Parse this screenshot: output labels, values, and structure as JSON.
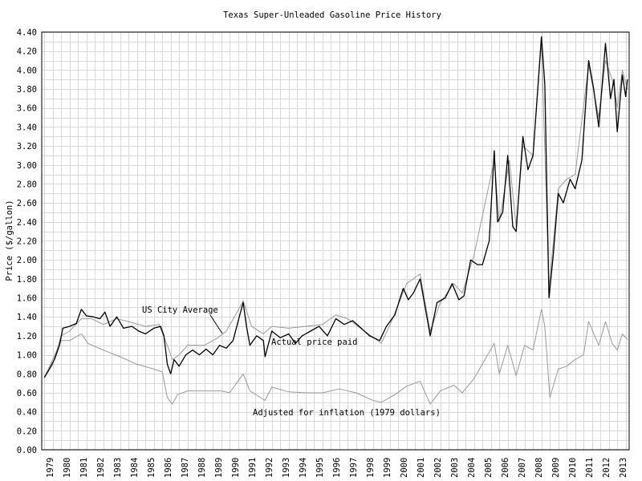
{
  "chart_data": {
    "type": "line",
    "title": "Texas Super-Unleaded Gasoline Price History",
    "ylabel": "Price ($/gallon)",
    "xlabel": "",
    "ylim": [
      0,
      4.4
    ],
    "xlim": [
      1979,
      2013.7
    ],
    "grid": true,
    "y_ticks": [
      "0.00",
      "0.20",
      "0.40",
      "0.60",
      "0.80",
      "1.00",
      "1.20",
      "1.40",
      "1.60",
      "1.80",
      "2.00",
      "2.20",
      "2.40",
      "2.60",
      "2.80",
      "3.00",
      "3.20",
      "3.40",
      "3.60",
      "3.80",
      "4.00",
      "4.20",
      "4.40"
    ],
    "x_ticks": [
      "1979",
      "1980",
      "1981",
      "1982",
      "1983",
      "1984",
      "1985",
      "1986",
      "1987",
      "1988",
      "1989",
      "1990",
      "1991",
      "1992",
      "1993",
      "1994",
      "1995",
      "1996",
      "1997",
      "1998",
      "1999",
      "2000",
      "2001",
      "2002",
      "2003",
      "2004",
      "2005",
      "2006",
      "2007",
      "2008",
      "2009",
      "2010",
      "2011",
      "2012",
      "2013"
    ],
    "colors": {
      "actual": "#000000",
      "us_city": "#999999",
      "inflation": "#999999",
      "grid": "#d8d8d8"
    },
    "series": [
      {
        "name": "Actual price paid",
        "x": [
          1979.0,
          1979.3,
          1979.6,
          1979.9,
          1980.1,
          1980.5,
          1980.9,
          1981.2,
          1981.5,
          1981.9,
          1982.3,
          1982.6,
          1982.9,
          1983.3,
          1983.7,
          1984.2,
          1984.6,
          1985.0,
          1985.5,
          1985.9,
          1986.1,
          1986.3,
          1986.5,
          1986.7,
          1987.0,
          1987.4,
          1987.8,
          1988.2,
          1988.6,
          1989.0,
          1989.4,
          1989.8,
          1990.2,
          1990.6,
          1990.8,
          1991.0,
          1991.2,
          1991.6,
          1992.0,
          1992.1,
          1992.5,
          1993.0,
          1993.5,
          1993.9,
          1994.3,
          1994.8,
          1995.3,
          1995.8,
          1996.3,
          1996.8,
          1997.3,
          1997.8,
          1998.3,
          1998.9,
          1999.3,
          1999.8,
          2000.3,
          2000.6,
          2000.9,
          2001.3,
          2001.6,
          2001.9,
          2002.3,
          2002.8,
          2003.2,
          2003.6,
          2003.9,
          2004.3,
          2004.7,
          2005.0,
          2005.4,
          2005.7,
          2005.9,
          2006.2,
          2006.5,
          2006.8,
          2007.0,
          2007.4,
          2007.7,
          2008.0,
          2008.5,
          2008.7,
          2008.95,
          2009.2,
          2009.5,
          2009.8,
          2010.2,
          2010.5,
          2010.9,
          2011.3,
          2011.6,
          2011.9,
          2012.3,
          2012.6,
          2012.8,
          2013.0,
          2013.3,
          2013.5,
          2013.6
        ],
        "y": [
          0.76,
          0.85,
          0.95,
          1.1,
          1.28,
          1.3,
          1.33,
          1.48,
          1.41,
          1.4,
          1.38,
          1.45,
          1.3,
          1.4,
          1.28,
          1.3,
          1.25,
          1.22,
          1.28,
          1.3,
          1.2,
          0.9,
          0.8,
          0.95,
          0.88,
          1.0,
          1.05,
          1.0,
          1.06,
          1.0,
          1.1,
          1.07,
          1.15,
          1.42,
          1.55,
          1.3,
          1.1,
          1.2,
          1.15,
          0.98,
          1.25,
          1.18,
          1.22,
          1.12,
          1.2,
          1.25,
          1.3,
          1.2,
          1.38,
          1.32,
          1.36,
          1.28,
          1.2,
          1.15,
          1.3,
          1.42,
          1.7,
          1.58,
          1.65,
          1.8,
          1.5,
          1.2,
          1.55,
          1.6,
          1.75,
          1.58,
          1.62,
          2.0,
          1.95,
          1.95,
          2.2,
          3.15,
          2.4,
          2.5,
          3.1,
          2.35,
          2.3,
          3.3,
          2.95,
          3.1,
          4.35,
          3.85,
          1.6,
          2.05,
          2.7,
          2.6,
          2.85,
          2.75,
          3.05,
          4.1,
          3.8,
          3.4,
          4.28,
          3.7,
          3.9,
          3.35,
          3.95,
          3.72,
          3.9
        ]
      },
      {
        "name": "US City Average",
        "x": [
          1979.0,
          1979.5,
          1980.0,
          1980.5,
          1981.2,
          1981.8,
          1982.5,
          1983.3,
          1984.0,
          1985.0,
          1985.8,
          1986.3,
          1986.6,
          1987.0,
          1987.5,
          1988.5,
          1989.3,
          1989.8,
          1990.6,
          1990.8,
          1991.3,
          1992.0,
          1992.5,
          1993.5,
          1994.5,
          1995.5,
          1996.3,
          1997.0,
          1998.0,
          1999.0,
          1999.6,
          2000.5,
          2001.3,
          2001.9,
          2002.5,
          2003.3,
          2003.8,
          2004.5,
          2005.7,
          2006.0,
          2006.6,
          2007.0,
          2007.4,
          2008.0,
          2008.5,
          2008.95,
          2009.5,
          2010.0,
          2010.5,
          2011.3,
          2011.9,
          2012.3,
          2012.8,
          2013.0,
          2013.3,
          2013.6
        ],
        "y": [
          0.76,
          0.9,
          1.2,
          1.25,
          1.38,
          1.38,
          1.32,
          1.38,
          1.35,
          1.3,
          1.32,
          1.1,
          0.95,
          1.0,
          1.1,
          1.1,
          1.18,
          1.25,
          1.5,
          1.57,
          1.3,
          1.22,
          1.3,
          1.28,
          1.3,
          1.32,
          1.42,
          1.38,
          1.25,
          1.12,
          1.35,
          1.75,
          1.85,
          1.25,
          1.55,
          1.75,
          1.65,
          2.05,
          3.05,
          2.4,
          3.05,
          2.35,
          3.2,
          3.1,
          4.3,
          1.7,
          2.75,
          2.85,
          2.9,
          4.05,
          3.5,
          4.1,
          3.85,
          3.6,
          4.0,
          3.8
        ]
      },
      {
        "name": "Adjusted for inflation (1979 dollars)",
        "x": [
          1979.0,
          1979.5,
          1980.0,
          1980.5,
          1981.2,
          1981.6,
          1982.5,
          1983.5,
          1984.5,
          1985.5,
          1986.0,
          1986.3,
          1986.6,
          1986.9,
          1987.5,
          1988.5,
          1989.5,
          1990.0,
          1990.8,
          1991.2,
          1992.1,
          1992.5,
          1993.5,
          1994.5,
          1995.5,
          1996.5,
          1997.5,
          1998.5,
          1999.0,
          1999.8,
          2000.5,
          2001.3,
          2001.9,
          2002.5,
          2003.3,
          2003.8,
          2004.5,
          2005.7,
          2006.0,
          2006.5,
          2007.0,
          2007.5,
          2008.0,
          2008.5,
          2008.7,
          2009.0,
          2009.5,
          2010.0,
          2010.5,
          2011.0,
          2011.3,
          2011.9,
          2012.3,
          2012.7,
          2013.0,
          2013.3,
          2013.6
        ],
        "y": [
          0.76,
          0.95,
          1.15,
          1.15,
          1.22,
          1.12,
          1.05,
          0.98,
          0.9,
          0.85,
          0.82,
          0.55,
          0.48,
          0.58,
          0.62,
          0.62,
          0.62,
          0.6,
          0.8,
          0.62,
          0.52,
          0.66,
          0.61,
          0.6,
          0.6,
          0.64,
          0.6,
          0.52,
          0.5,
          0.58,
          0.67,
          0.72,
          0.48,
          0.62,
          0.68,
          0.6,
          0.75,
          1.12,
          0.8,
          1.1,
          0.78,
          1.1,
          1.05,
          1.48,
          1.3,
          0.55,
          0.85,
          0.88,
          0.95,
          1.0,
          1.35,
          1.1,
          1.35,
          1.12,
          1.05,
          1.22,
          1.16
        ]
      }
    ],
    "annotations": {
      "us_city": "US City Average",
      "actual": "Actual price paid",
      "inflation": "Adjusted for inflation (1979 dollars)"
    }
  }
}
